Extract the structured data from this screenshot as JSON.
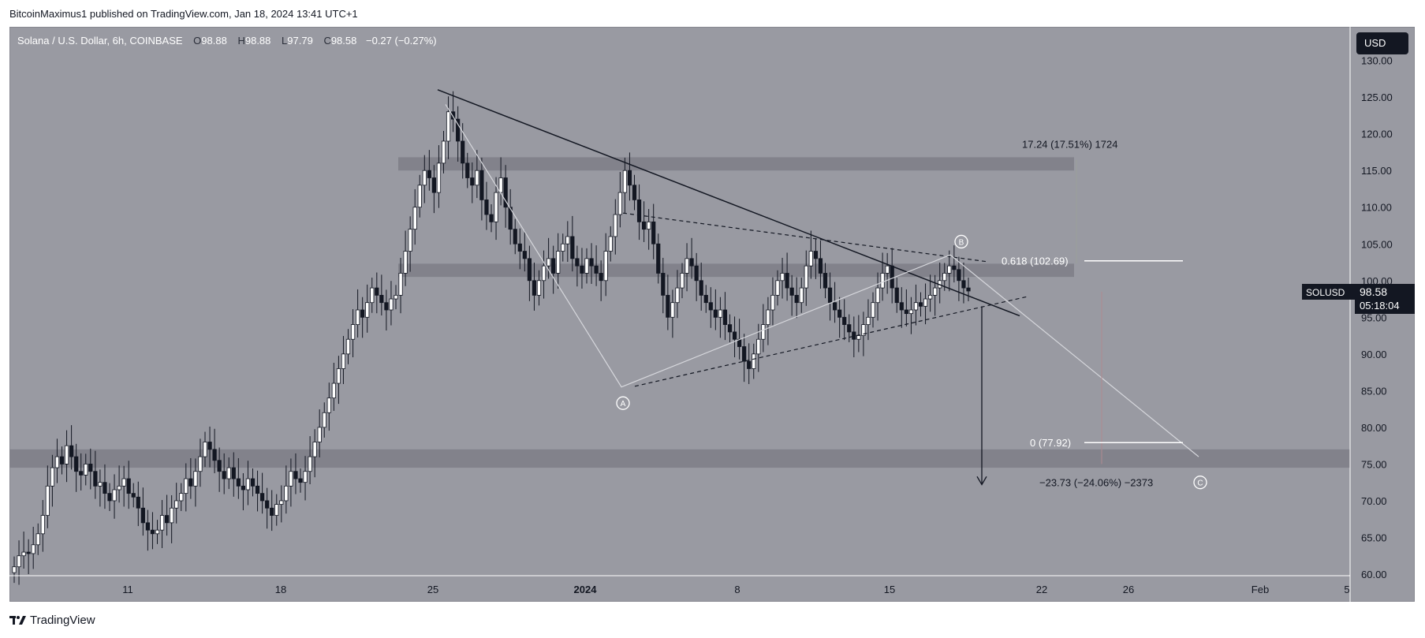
{
  "header": {
    "published": "BitcoinMaximus1 published on TradingView.com, Jan 18, 2024 13:41 UTC+1"
  },
  "symbol": {
    "name": "Solana / U.S. Dollar, 6h, COINBASE",
    "o_label": "O",
    "o": "98.88",
    "h_label": "H",
    "h": "98.88",
    "l_label": "L",
    "l": "97.79",
    "c_label": "C",
    "c": "98.58",
    "change": "−0.27 (−0.27%)"
  },
  "currency_button": "USD",
  "price_badge": {
    "ticker": "SOLUSD",
    "price": "98.58",
    "countdown": "05:18:04"
  },
  "footer": {
    "brand": "TradingView"
  },
  "colors": {
    "background": "#999aa2",
    "bull": "#ffffff",
    "bear": "#131722",
    "zone": "#7f8088"
  },
  "chart_data": {
    "type": "candlestick",
    "title": "Solana / U.S. Dollar, 6h, COINBASE",
    "y_axis": {
      "ticks": [
        "130.00",
        "125.00",
        "120.00",
        "115.00",
        "110.00",
        "105.00",
        "100.00",
        "95.00",
        "90.00",
        "85.00",
        "80.00",
        "75.00",
        "70.00",
        "65.00",
        "60.00"
      ],
      "range": [
        60,
        132
      ]
    },
    "x_axis": {
      "ticks": [
        "11",
        "18",
        "25",
        "2024",
        "8",
        "15",
        "22",
        "26",
        "Feb",
        "5"
      ]
    },
    "close_series": [
      61,
      62.5,
      63,
      62.8,
      64,
      65.5,
      68,
      72,
      74.5,
      76,
      75,
      77.5,
      76,
      74,
      73.5,
      75,
      74,
      72,
      72.5,
      71,
      70,
      71.5,
      72,
      73,
      71,
      70.5,
      69,
      67,
      66,
      65.5,
      66,
      68,
      67,
      69,
      70,
      71,
      73,
      72,
      74,
      76,
      78,
      77,
      75.5,
      74,
      73,
      74.5,
      73,
      72,
      71.5,
      73,
      72,
      71,
      70,
      69,
      68,
      69.5,
      70,
      72,
      74,
      73,
      72.5,
      74,
      76,
      78,
      80,
      82,
      84,
      86,
      88,
      90,
      92,
      94,
      96,
      95,
      97,
      99,
      98,
      97,
      96,
      97.5,
      98,
      101,
      104,
      107,
      110,
      113,
      115,
      114,
      112,
      116,
      119,
      123,
      122,
      119,
      116,
      114,
      113,
      115,
      111,
      109,
      108,
      112,
      114,
      110,
      107,
      105,
      104,
      103,
      100,
      98,
      100,
      102,
      103,
      101,
      104,
      105,
      106,
      103,
      102,
      101,
      103,
      102,
      101,
      100,
      104,
      106,
      109,
      112,
      115,
      113,
      111,
      108,
      107,
      108,
      105,
      101,
      98,
      95,
      97,
      99,
      101,
      103,
      102,
      100,
      98,
      97,
      96,
      95,
      96,
      94,
      93,
      92,
      91,
      89,
      88,
      90,
      92,
      94,
      96,
      98,
      100,
      101,
      99,
      98,
      97,
      99,
      102,
      104,
      103,
      101,
      99,
      97,
      96,
      95,
      94,
      93,
      92,
      92.5,
      94,
      95,
      97,
      99,
      101,
      102,
      99,
      97,
      96,
      95.5,
      96,
      97,
      96.5,
      97.5,
      98,
      99,
      100,
      101,
      102,
      101.5,
      100,
      99,
      98.58
    ],
    "levels": [
      {
        "label": "0.618 (102.69)",
        "value": 102.69
      },
      {
        "label": "0 (77.92)",
        "value": 77.92
      }
    ],
    "zones": [
      {
        "from": 115,
        "to": 116.8
      },
      {
        "from": 100.5,
        "to": 102.3
      },
      {
        "from": 74.5,
        "to": 77
      }
    ],
    "measure_up": "17.24 (17.51%) 1724",
    "measure_down": "−23.73 (−24.06%) −2373",
    "wave_labels": [
      "A",
      "B",
      "C"
    ]
  }
}
